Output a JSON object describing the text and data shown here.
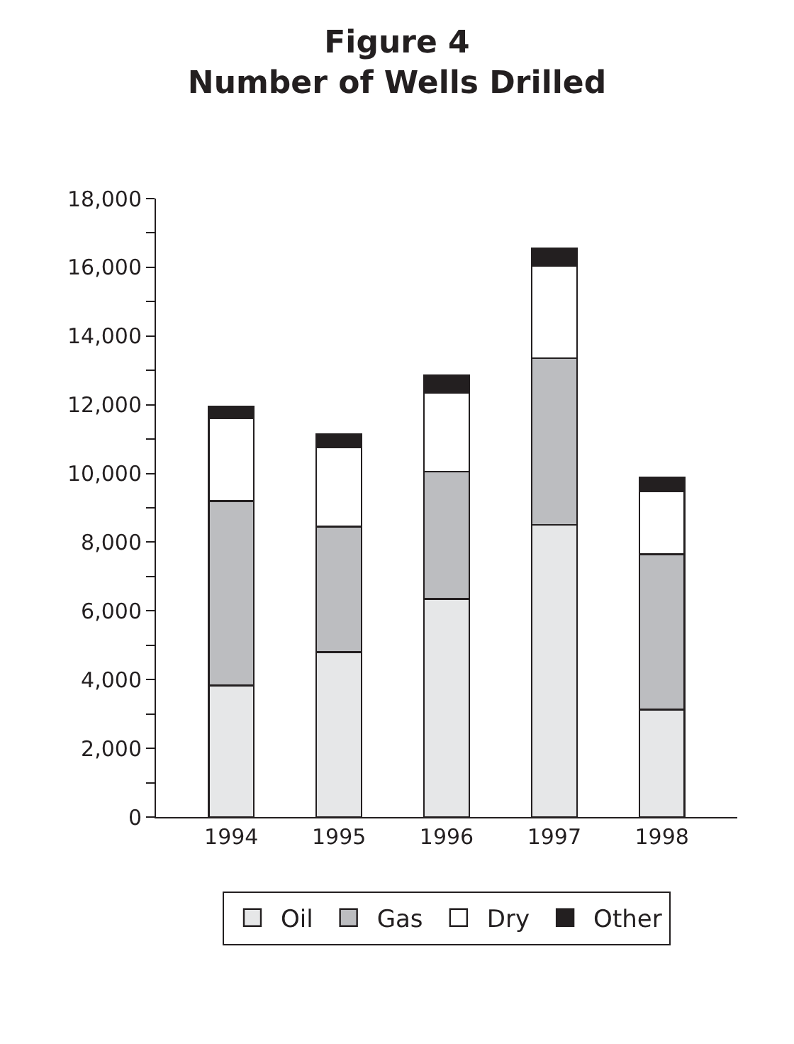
{
  "chart_data": {
    "type": "bar",
    "title": "Figure 4\nNumber of Wells Drilled",
    "stacked": true,
    "categories": [
      "1994",
      "1995",
      "1996",
      "1997",
      "1998"
    ],
    "series": [
      {
        "name": "Oil",
        "color": "#e6e7e8",
        "values": [
          3830,
          4800,
          6350,
          8500,
          3130
        ]
      },
      {
        "name": "Gas",
        "color": "#bcbdc0",
        "values": [
          5370,
          3650,
          3700,
          4850,
          4520
        ]
      },
      {
        "name": "Dry",
        "color": "#ffffff",
        "values": [
          2400,
          2300,
          2300,
          2700,
          1820
        ]
      },
      {
        "name": "Other",
        "color": "#231f20",
        "values": [
          350,
          400,
          500,
          500,
          410
        ]
      }
    ],
    "ylim": [
      0,
      18000
    ],
    "yticks": [
      0,
      {
        "value": 1000,
        "label": null
      },
      {
        "value": 2000,
        "label": "2,000"
      },
      {
        "value": 3000,
        "label": null
      },
      {
        "value": 4000,
        "label": "4,000"
      },
      {
        "value": 5000,
        "label": null
      },
      {
        "value": 6000,
        "label": "6,000"
      },
      {
        "value": 7000,
        "label": null
      },
      {
        "value": 8000,
        "label": "8,000"
      },
      {
        "value": 9000,
        "label": null
      },
      {
        "value": 10000,
        "label": "10,000"
      },
      {
        "value": 11000,
        "label": null
      },
      {
        "value": 12000,
        "label": "12,000"
      },
      {
        "value": 13000,
        "label": null
      },
      {
        "value": 14000,
        "label": "14,000"
      },
      {
        "value": 15000,
        "label": null
      },
      {
        "value": 16000,
        "label": "16,000"
      },
      {
        "value": 17000,
        "label": null
      },
      {
        "value": 18000,
        "label": "18,000"
      }
    ],
    "legend": "bottom"
  }
}
